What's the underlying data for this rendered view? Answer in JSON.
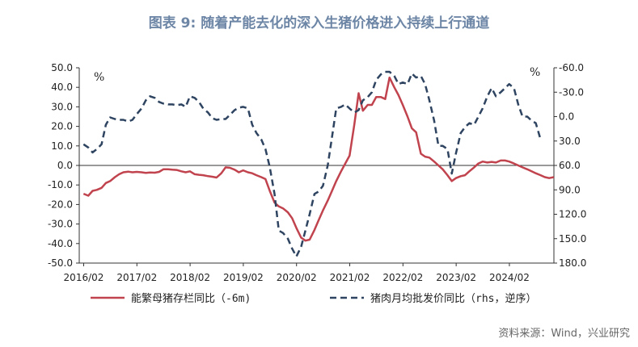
{
  "title": "图表 9:  随着产能去化的深入生猪价格进入持续上行通道",
  "source": "资料来源：Wind，兴业研究",
  "chart_data": {
    "type": "line",
    "x_tick_labels": [
      "2016/02",
      "2017/02",
      "2018/02",
      "2019/02",
      "2020/02",
      "2021/02",
      "2022/02",
      "2023/02",
      "2024/02"
    ],
    "x_range": [
      2016.0,
      2024.92
    ],
    "left_axis": {
      "unit": "%",
      "ylim": [
        -50,
        50
      ],
      "ticks": [
        "50.0",
        "40.0",
        "30.0",
        "20.0",
        "10.0",
        "0.0",
        "-10.0",
        "-20.0",
        "-30.0",
        "-40.0",
        "-50.0"
      ]
    },
    "right_axis": {
      "unit": "%",
      "ylim": [
        -60,
        180
      ],
      "inverted": true,
      "ticks": [
        "-60.0",
        "-30.0",
        "0.0",
        "30.0",
        "60.0",
        "90.0",
        "120.0",
        "150.0",
        "180.0"
      ]
    },
    "legend_placement": "bottom",
    "series": [
      {
        "name": "能繁母猪存栏同比（-6m)",
        "axis": "left",
        "color": "#c0434e",
        "style": "solid",
        "points": [
          [
            2016.08,
            -14.5
          ],
          [
            2016.17,
            -15.5
          ],
          [
            2016.25,
            -13
          ],
          [
            2016.33,
            -12.5
          ],
          [
            2016.42,
            -11.5
          ],
          [
            2016.5,
            -9
          ],
          [
            2016.58,
            -8
          ],
          [
            2016.67,
            -6
          ],
          [
            2016.75,
            -4.5
          ],
          [
            2016.83,
            -3.5
          ],
          [
            2016.92,
            -3.2
          ],
          [
            2017.0,
            -3.5
          ],
          [
            2017.08,
            -3.3
          ],
          [
            2017.17,
            -3.5
          ],
          [
            2017.25,
            -3.8
          ],
          [
            2017.33,
            -3.6
          ],
          [
            2017.42,
            -3.7
          ],
          [
            2017.5,
            -3.3
          ],
          [
            2017.58,
            -2
          ],
          [
            2017.67,
            -2
          ],
          [
            2017.75,
            -2.2
          ],
          [
            2017.83,
            -2.3
          ],
          [
            2017.92,
            -3
          ],
          [
            2018.0,
            -3.5
          ],
          [
            2018.08,
            -3
          ],
          [
            2018.17,
            -4.5
          ],
          [
            2018.25,
            -4.8
          ],
          [
            2018.33,
            -5
          ],
          [
            2018.42,
            -5.5
          ],
          [
            2018.5,
            -5.8
          ],
          [
            2018.58,
            -6.2
          ],
          [
            2018.67,
            -4
          ],
          [
            2018.75,
            -1
          ],
          [
            2018.83,
            -1.2
          ],
          [
            2018.92,
            -2.2
          ],
          [
            2019.0,
            -3.5
          ],
          [
            2019.08,
            -2.5
          ],
          [
            2019.17,
            -3.5
          ],
          [
            2019.25,
            -4
          ],
          [
            2019.33,
            -5
          ],
          [
            2019.42,
            -6
          ],
          [
            2019.5,
            -7
          ],
          [
            2019.58,
            -13
          ],
          [
            2019.67,
            -19
          ],
          [
            2019.75,
            -21
          ],
          [
            2019.83,
            -22
          ],
          [
            2019.92,
            -24
          ],
          [
            2020.0,
            -27
          ],
          [
            2020.08,
            -32
          ],
          [
            2020.17,
            -37
          ],
          [
            2020.25,
            -38.5
          ],
          [
            2020.33,
            -38
          ],
          [
            2020.42,
            -33
          ],
          [
            2020.5,
            -28
          ],
          [
            2020.58,
            -23
          ],
          [
            2020.67,
            -18
          ],
          [
            2020.75,
            -13
          ],
          [
            2020.83,
            -8
          ],
          [
            2020.92,
            -3
          ],
          [
            2021.0,
            1
          ],
          [
            2021.08,
            5
          ],
          [
            2021.17,
            21
          ],
          [
            2021.25,
            37
          ],
          [
            2021.33,
            28
          ],
          [
            2021.42,
            31
          ],
          [
            2021.5,
            31
          ],
          [
            2021.58,
            35
          ],
          [
            2021.67,
            35
          ],
          [
            2021.75,
            34
          ],
          [
            2021.83,
            45
          ],
          [
            2021.92,
            40
          ],
          [
            2022.0,
            36
          ],
          [
            2022.08,
            31
          ],
          [
            2022.17,
            25
          ],
          [
            2022.25,
            19
          ],
          [
            2022.33,
            17
          ],
          [
            2022.42,
            6
          ],
          [
            2022.5,
            4.5
          ],
          [
            2022.58,
            4
          ],
          [
            2022.67,
            2
          ],
          [
            2022.75,
            0
          ],
          [
            2022.83,
            -2
          ],
          [
            2022.92,
            -5
          ],
          [
            2023.0,
            -8
          ],
          [
            2023.08,
            -6.5
          ],
          [
            2023.17,
            -5.5
          ],
          [
            2023.25,
            -5
          ],
          [
            2023.33,
            -3
          ],
          [
            2023.42,
            -1
          ],
          [
            2023.5,
            1
          ],
          [
            2023.58,
            2
          ],
          [
            2023.67,
            1.5
          ],
          [
            2023.75,
            1.8
          ],
          [
            2023.83,
            1.5
          ],
          [
            2023.92,
            2.5
          ],
          [
            2024.0,
            2.5
          ],
          [
            2024.08,
            2
          ],
          [
            2024.17,
            1
          ],
          [
            2024.25,
            0
          ],
          [
            2024.33,
            -1
          ],
          [
            2024.42,
            -2
          ],
          [
            2024.5,
            -3
          ],
          [
            2024.58,
            -4
          ],
          [
            2024.67,
            -5
          ],
          [
            2024.75,
            -6
          ],
          [
            2024.83,
            -6.5
          ],
          [
            2024.92,
            -6
          ]
        ]
      },
      {
        "name": "猪肉月均批发价同比（rhs，逆序）",
        "axis": "right",
        "color": "#2e4460",
        "style": "dashed",
        "points": [
          [
            2016.08,
            34
          ],
          [
            2016.17,
            38
          ],
          [
            2016.25,
            44
          ],
          [
            2016.33,
            40
          ],
          [
            2016.42,
            34
          ],
          [
            2016.5,
            10
          ],
          [
            2016.58,
            1
          ],
          [
            2016.67,
            3
          ],
          [
            2016.75,
            4
          ],
          [
            2016.83,
            4
          ],
          [
            2016.92,
            6
          ],
          [
            2017.0,
            4
          ],
          [
            2017.08,
            -3
          ],
          [
            2017.17,
            -10
          ],
          [
            2017.25,
            -20
          ],
          [
            2017.33,
            -25
          ],
          [
            2017.42,
            -23
          ],
          [
            2017.5,
            -18
          ],
          [
            2017.58,
            -16
          ],
          [
            2017.67,
            -15
          ],
          [
            2017.75,
            -15
          ],
          [
            2017.83,
            -14
          ],
          [
            2017.92,
            -15
          ],
          [
            2018.0,
            -12
          ],
          [
            2018.08,
            -25
          ],
          [
            2018.17,
            -23
          ],
          [
            2018.25,
            -18
          ],
          [
            2018.33,
            -10
          ],
          [
            2018.42,
            -5
          ],
          [
            2018.5,
            2
          ],
          [
            2018.58,
            4
          ],
          [
            2018.67,
            3
          ],
          [
            2018.75,
            3
          ],
          [
            2018.83,
            -2
          ],
          [
            2018.92,
            -8
          ],
          [
            2019.0,
            -11
          ],
          [
            2019.08,
            -12
          ],
          [
            2019.17,
            -10
          ],
          [
            2019.25,
            10
          ],
          [
            2019.33,
            20
          ],
          [
            2019.42,
            28
          ],
          [
            2019.5,
            40
          ],
          [
            2019.58,
            62
          ],
          [
            2019.67,
            95
          ],
          [
            2019.75,
            140
          ],
          [
            2019.83,
            143
          ],
          [
            2019.92,
            150
          ],
          [
            2020.0,
            162
          ],
          [
            2020.08,
            172
          ],
          [
            2020.17,
            160
          ],
          [
            2020.25,
            140
          ],
          [
            2020.33,
            120
          ],
          [
            2020.42,
            95
          ],
          [
            2020.5,
            92
          ],
          [
            2020.58,
            85
          ],
          [
            2020.67,
            60
          ],
          [
            2020.75,
            25
          ],
          [
            2020.83,
            -10
          ],
          [
            2020.92,
            -12
          ],
          [
            2021.0,
            -15
          ],
          [
            2021.08,
            -10
          ],
          [
            2021.17,
            -5
          ],
          [
            2021.25,
            -8
          ],
          [
            2021.33,
            -20
          ],
          [
            2021.42,
            -24
          ],
          [
            2021.5,
            -30
          ],
          [
            2021.58,
            -45
          ],
          [
            2021.67,
            -52
          ],
          [
            2021.75,
            -55
          ],
          [
            2021.83,
            -55
          ],
          [
            2021.92,
            -50
          ],
          [
            2022.0,
            -40
          ],
          [
            2022.08,
            -42
          ],
          [
            2022.17,
            -40
          ],
          [
            2022.25,
            -53
          ],
          [
            2022.33,
            -48
          ],
          [
            2022.42,
            -50
          ],
          [
            2022.5,
            -40
          ],
          [
            2022.58,
            -20
          ],
          [
            2022.67,
            5
          ],
          [
            2022.75,
            36
          ],
          [
            2022.83,
            36
          ],
          [
            2022.92,
            40
          ],
          [
            2023.0,
            70
          ],
          [
            2023.08,
            45
          ],
          [
            2023.17,
            20
          ],
          [
            2023.25,
            13
          ],
          [
            2023.33,
            8
          ],
          [
            2023.42,
            10
          ],
          [
            2023.5,
            0
          ],
          [
            2023.58,
            -10
          ],
          [
            2023.67,
            -25
          ],
          [
            2023.75,
            -35
          ],
          [
            2023.83,
            -25
          ],
          [
            2023.92,
            -30
          ],
          [
            2024.0,
            -35
          ],
          [
            2024.08,
            -40
          ],
          [
            2024.17,
            -35
          ],
          [
            2024.25,
            -15
          ],
          [
            2024.33,
            0
          ],
          [
            2024.42,
            0
          ],
          [
            2024.5,
            5
          ],
          [
            2024.58,
            8
          ],
          [
            2024.67,
            28
          ]
        ]
      }
    ]
  }
}
